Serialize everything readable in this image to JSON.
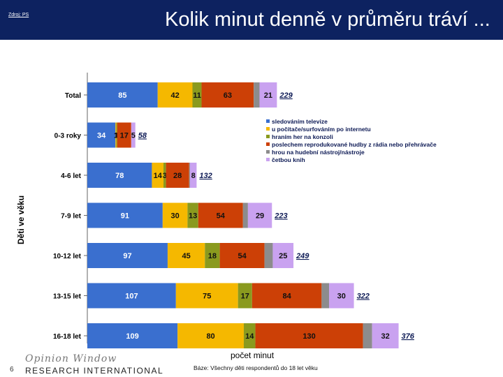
{
  "header": {
    "source_link": "Zdroj: PS",
    "title": "Kolik minut denně v průměru tráví ..."
  },
  "footer": {
    "slide_number": "6",
    "logo_script": "Opinion Window",
    "logo_text": "RESEARCH INTERNATIONAL",
    "base_note": "Báze: Všechny děti respondentů do 18 let věku"
  },
  "colors": {
    "header_bg": "#0d2260",
    "series": [
      "#3a6fcf",
      "#f5b800",
      "#8a9a1e",
      "#cc4006",
      "#8c8c8c",
      "#c9a2f0"
    ]
  },
  "chart_data": {
    "type": "bar",
    "orientation": "horizontal",
    "stacked": true,
    "title": "Kolik minut denně v průměru tráví ...",
    "xlabel": "počet minut",
    "ylabel": "Děti ve věku",
    "xlim": [
      0,
      400
    ],
    "categories": [
      "Total",
      "0-3 roky",
      "4-6 let",
      "7-9 let",
      "10-12 let",
      "13-15 let",
      "16-18 let"
    ],
    "series": [
      {
        "name": "sledováním televize",
        "values": [
          85,
          34,
          78,
          91,
          97,
          107,
          109
        ],
        "labels": [
          "85",
          "34",
          "78",
          "91",
          "97",
          "107",
          "109"
        ]
      },
      {
        "name": "u počítače/surfováním po internetu",
        "values": [
          42,
          1,
          14,
          30,
          45,
          75,
          80
        ],
        "labels": [
          "42",
          "1",
          "14",
          "30",
          "45",
          "75",
          "80"
        ]
      },
      {
        "name": "hraním her na konzoli",
        "values": [
          11,
          1,
          3,
          13,
          18,
          17,
          14
        ],
        "labels": [
          "11",
          "1",
          "3",
          "13",
          "18",
          "17",
          "14"
        ]
      },
      {
        "name": "poslechem reprodukované hudby z rádia nebo přehrávače",
        "values": [
          63,
          17,
          28,
          54,
          54,
          84,
          130
        ],
        "labels": [
          "63",
          "17",
          "28",
          "54",
          "54",
          "84",
          "130"
        ]
      },
      {
        "name": "hrou na hudební nástroj/nástroje",
        "values": [
          7,
          0,
          1,
          6,
          10,
          9,
          11
        ],
        "labels": [
          "",
          "",
          "",
          "",
          "",
          "",
          ""
        ]
      },
      {
        "name": "četbou knih",
        "values": [
          21,
          5,
          8,
          29,
          25,
          30,
          32
        ],
        "labels": [
          "21",
          "5",
          "8",
          "29",
          "25",
          "30",
          "32"
        ]
      }
    ],
    "totals": [
      229,
      58,
      132,
      223,
      249,
      322,
      376
    ]
  }
}
